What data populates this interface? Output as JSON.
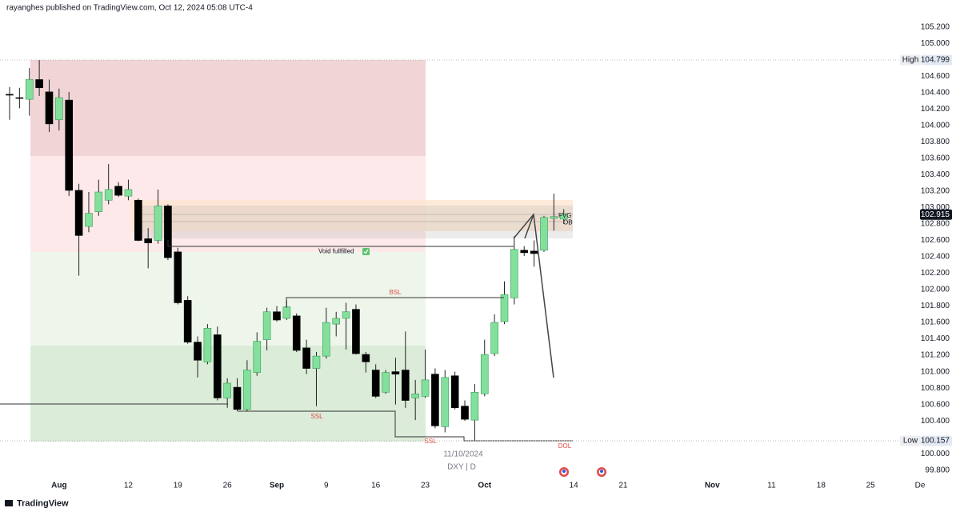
{
  "header": "rayanghes published on TradingView.com, Oct 12, 2024 05:08 UTC-4",
  "footer": "TradingView",
  "chart_data": {
    "type": "candlestick",
    "title": "DXY | D",
    "date_label": "11/10/2024",
    "categories": [
      null,
      null,
      null,
      null,
      null,
      "Aug",
      null,
      null,
      null,
      null,
      null,
      null,
      "12",
      null,
      null,
      null,
      null,
      "19",
      null,
      null,
      null,
      null,
      "26",
      null,
      null,
      null,
      null,
      "Sep",
      null,
      null,
      null,
      null,
      "9",
      null,
      null,
      null,
      null,
      "16",
      null,
      null,
      null,
      null,
      "23",
      null,
      null,
      null,
      null,
      null,
      "Oct",
      null,
      null,
      null,
      null,
      null,
      null,
      null,
      null,
      "14",
      null,
      null,
      null,
      null,
      "21",
      null,
      null,
      null,
      null,
      null,
      null,
      null,
      null,
      "Nov",
      null,
      null,
      null,
      null,
      null,
      "11",
      null,
      null,
      null,
      null,
      "18",
      null,
      null,
      null,
      null,
      "25",
      null,
      null,
      null,
      null,
      "De"
    ],
    "open": [
      104.38,
      104.34,
      104.32,
      104.56,
      104.41,
      104.07,
      104.31,
      103.21,
      102.77,
      102.95,
      103.09,
      103.26,
      103.14,
      103.09,
      102.62,
      102.6,
      103.02,
      102.46,
      101.87,
      101.36,
      101.12,
      101.45,
      100.68,
      100.81,
      100.54,
      100.99,
      101.39,
      101.73,
      101.65,
      101.68,
      101.29,
      101.04,
      101.19,
      101.58,
      101.65,
      101.76,
      101.21,
      101.02,
      100.75,
      101.0,
      101.02,
      100.68,
      100.7,
      100.97,
      100.33,
      100.95,
      100.58,
      100.41,
      100.73,
      101.22,
      101.61,
      101.9,
      102.48,
      102.47,
      102.48,
      102.87,
      102.86,
      null,
      null,
      null,
      null,
      null,
      null,
      null,
      null,
      null,
      null,
      null,
      null,
      null,
      null,
      null,
      null,
      null,
      null,
      null,
      null,
      null,
      null,
      null,
      null,
      null,
      null,
      null,
      null,
      null,
      null,
      null,
      null,
      null,
      null,
      null,
      null
    ],
    "high": [
      104.47,
      104.46,
      104.7,
      104.799,
      104.56,
      104.45,
      104.41,
      103.29,
      103.19,
      103.34,
      103.53,
      103.31,
      103.34,
      103.11,
      102.75,
      103.22,
      103.04,
      102.51,
      101.92,
      101.43,
      101.58,
      101.55,
      100.92,
      100.92,
      101.14,
      101.48,
      101.78,
      101.8,
      101.87,
      101.71,
      101.39,
      101.24,
      101.78,
      101.73,
      101.84,
      101.82,
      101.24,
      101.09,
      101.02,
      101.17,
      101.49,
      100.9,
      101.27,
      101.04,
      101.02,
      101.0,
      100.65,
      100.85,
      101.39,
      101.7,
      102.1,
      102.65,
      102.53,
      102.6,
      102.9,
      103.17,
      102.98,
      null,
      null,
      null,
      null,
      null,
      null,
      null,
      null,
      null,
      null,
      null,
      null,
      null,
      null,
      null,
      null,
      null,
      null,
      null,
      null,
      null,
      null,
      null,
      null,
      null,
      null,
      null,
      null,
      null,
      null,
      null,
      null,
      null,
      null,
      null,
      null
    ],
    "low": [
      104.07,
      104.21,
      104.12,
      104.36,
      103.92,
      103.94,
      103.14,
      102.17,
      102.7,
      102.9,
      103.04,
      103.13,
      103.09,
      102.59,
      102.26,
      102.56,
      102.36,
      101.82,
      101.34,
      100.93,
      101.09,
      100.65,
      100.56,
      100.52,
      100.52,
      100.95,
      101.26,
      101.61,
      101.63,
      101.24,
      100.97,
      100.58,
      101.16,
      101.43,
      101.27,
      101.21,
      100.99,
      100.68,
      100.73,
      100.6,
      100.56,
      100.41,
      100.68,
      100.31,
      100.26,
      100.54,
      100.4,
      100.157,
      100.7,
      101.19,
      101.58,
      101.82,
      102.41,
      102.28,
      102.46,
      102.72,
      102.8,
      null,
      null,
      null,
      null,
      null,
      null,
      null,
      null,
      null,
      null,
      null,
      null,
      null,
      null,
      null,
      null,
      null,
      null,
      null,
      null,
      null,
      null,
      null,
      null,
      null,
      null,
      null,
      null,
      null,
      null,
      null,
      null,
      null,
      null,
      null,
      null
    ],
    "close": [
      104.37,
      104.33,
      104.56,
      104.46,
      104.02,
      104.34,
      103.21,
      102.66,
      102.93,
      103.19,
      103.22,
      103.15,
      103.22,
      102.6,
      102.57,
      103.02,
      102.39,
      101.84,
      101.36,
      101.14,
      101.53,
      100.68,
      100.86,
      100.54,
      101.02,
      101.37,
      101.73,
      101.63,
      101.79,
      101.26,
      101.04,
      101.19,
      101.6,
      101.65,
      101.73,
      101.22,
      101.12,
      100.7,
      100.99,
      100.97,
      100.65,
      100.73,
      100.9,
      100.34,
      100.93,
      100.56,
      100.42,
      100.75,
      101.21,
      101.6,
      101.94,
      102.49,
      102.45,
      102.44,
      102.88,
      102.89,
      102.915,
      null,
      null,
      null,
      null,
      null,
      null,
      null,
      null,
      null,
      null,
      null,
      null,
      null,
      null,
      null,
      null,
      null,
      null,
      null,
      null,
      null,
      null,
      null,
      null,
      null,
      null,
      null,
      null,
      null,
      null,
      null,
      null,
      null,
      null,
      null,
      null
    ],
    "up_color": "#82e09c",
    "down_color": "#000000",
    "ylim": [
      99.68,
      105.53
    ],
    "yticks": [
      {
        "value": 105.2,
        "label": "105.200"
      },
      {
        "value": 105.0,
        "label": "105.000"
      },
      {
        "value": 104.6,
        "label": "104.600"
      },
      {
        "value": 104.4,
        "label": "104.400"
      },
      {
        "value": 104.2,
        "label": "104.200"
      },
      {
        "value": 104.0,
        "label": "104.000"
      },
      {
        "value": 103.8,
        "label": "103.800"
      },
      {
        "value": 103.6,
        "label": "103.600"
      },
      {
        "value": 103.4,
        "label": "103.400"
      },
      {
        "value": 103.2,
        "label": "103.200"
      },
      {
        "value": 103.0,
        "label": "103.000"
      },
      {
        "value": 102.8,
        "label": "102.800"
      },
      {
        "value": 102.6,
        "label": "102.600"
      },
      {
        "value": 102.4,
        "label": "102.400"
      },
      {
        "value": 102.2,
        "label": "102.200"
      },
      {
        "value": 102.0,
        "label": "102.000"
      },
      {
        "value": 101.8,
        "label": "101.800"
      },
      {
        "value": 101.6,
        "label": "101.600"
      },
      {
        "value": 101.4,
        "label": "101.400"
      },
      {
        "value": 101.2,
        "label": "101.200"
      },
      {
        "value": 101.0,
        "label": "101.000"
      },
      {
        "value": 100.8,
        "label": "100.800"
      },
      {
        "value": 100.6,
        "label": "100.600"
      },
      {
        "value": 100.4,
        "label": "100.400"
      },
      {
        "value": 100.0,
        "label": "100.000"
      },
      {
        "value": 99.8,
        "label": "99.800"
      }
    ],
    "high_marker": {
      "label": "High",
      "value": 104.799
    },
    "low_marker": {
      "label": "Low",
      "value": 100.157
    },
    "last_price": 102.915,
    "annotations": [
      "Void fullfilled",
      "BSL",
      "SSL",
      "SSL",
      "DOL",
      "FVG",
      "OB"
    ]
  }
}
